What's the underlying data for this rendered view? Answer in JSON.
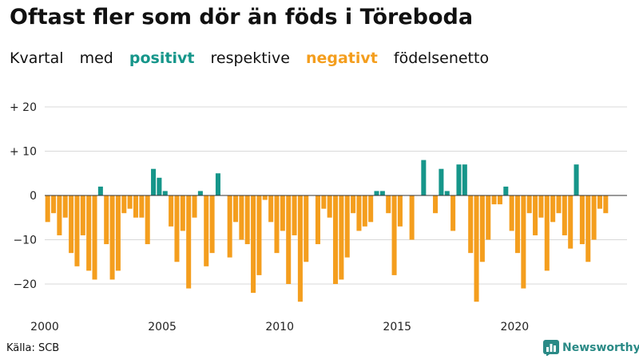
{
  "chart_data": {
    "type": "bar",
    "title": "Oftast fler som dör än föds i Töreboda",
    "subtitle": {
      "prefix": "Kvartal",
      "word_med": "med",
      "positive": "positivt",
      "middle": "respektive",
      "negative": "negativt",
      "suffix": "födelsenetto"
    },
    "ylim": [
      -25,
      23
    ],
    "yticks": [
      {
        "value": 20,
        "label": "+ 20"
      },
      {
        "value": 10,
        "label": "+ 10"
      },
      {
        "value": 0,
        "label": "0"
      },
      {
        "value": -10,
        "label": "−10"
      },
      {
        "value": -20,
        "label": "−20"
      }
    ],
    "xticks": [
      {
        "index": 0,
        "label": "2000"
      },
      {
        "index": 20,
        "label": "2005"
      },
      {
        "index": 40,
        "label": "2010"
      },
      {
        "index": 60,
        "label": "2015"
      },
      {
        "index": 80,
        "label": "2020"
      }
    ],
    "start_year": 2000,
    "colors": {
      "positive": "#16968a",
      "negative": "#f49e1e",
      "grid": "#d9d9d9",
      "baseline": "#333333"
    },
    "values": [
      -6,
      -4,
      -9,
      -5,
      -13,
      -16,
      -9,
      -17,
      -19,
      2,
      -11,
      -19,
      -17,
      -4,
      -3,
      -5,
      -5,
      -11,
      6,
      4,
      1,
      -7,
      -15,
      -8,
      -21,
      -5,
      1,
      -16,
      -13,
      5,
      0,
      -14,
      -6,
      -10,
      -11,
      -22,
      -18,
      -1,
      -6,
      -13,
      -8,
      -20,
      -9,
      -24,
      -15,
      0,
      -11,
      -3,
      -5,
      -20,
      -19,
      -14,
      -4,
      -8,
      -7,
      -6,
      1,
      1,
      -4,
      -18,
      -7,
      0,
      -10,
      0,
      8,
      0,
      -4,
      6,
      1,
      -8,
      7,
      7,
      -13,
      -24,
      -15,
      -10,
      -2,
      -2,
      2,
      -8,
      -13,
      -21,
      -4,
      -9,
      -5,
      -17,
      -6,
      -4,
      -9,
      -12,
      7,
      -11,
      -15,
      -10,
      -3,
      -4
    ]
  },
  "source": "Källa: SCB",
  "brand": {
    "name": "Newsworthy",
    "icon": "bar-chart-logo-icon"
  }
}
